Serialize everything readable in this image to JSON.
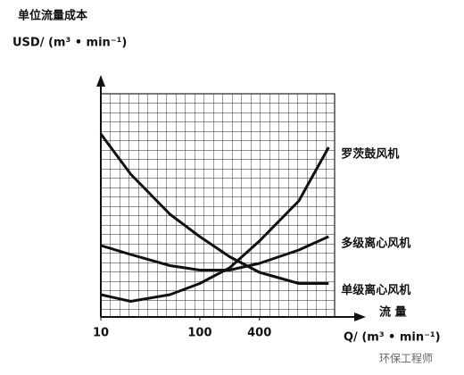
{
  "chart_data": {
    "type": "line",
    "y_label": "单位流量成本",
    "y_unit": "USD/ (m³ • min⁻¹)",
    "x_label": "流 量",
    "x_unit": "Q/ (m³ • min⁻¹)",
    "x": [
      10,
      20,
      50,
      100,
      200,
      400,
      1000,
      2000
    ],
    "xlim": [
      10,
      2300
    ],
    "xticks": [
      10,
      100,
      400
    ],
    "x_log": true,
    "ylim": [
      0,
      10
    ],
    "grid": true,
    "series": [
      {
        "name": "罗茨鼓风机",
        "color": "#111111",
        "values": [
          1.0,
          0.7,
          1.0,
          1.5,
          2.2,
          3.4,
          5.2,
          7.6
        ]
      },
      {
        "name": "多级离心风机",
        "color": "#111111",
        "values": [
          3.2,
          2.8,
          2.3,
          2.1,
          2.1,
          2.4,
          3.0,
          3.6
        ]
      },
      {
        "name": "单级离心风机",
        "color": "#111111",
        "values": [
          8.2,
          6.4,
          4.6,
          3.6,
          2.7,
          2.0,
          1.5,
          1.5
        ]
      }
    ],
    "watermark": "环保工程师"
  }
}
